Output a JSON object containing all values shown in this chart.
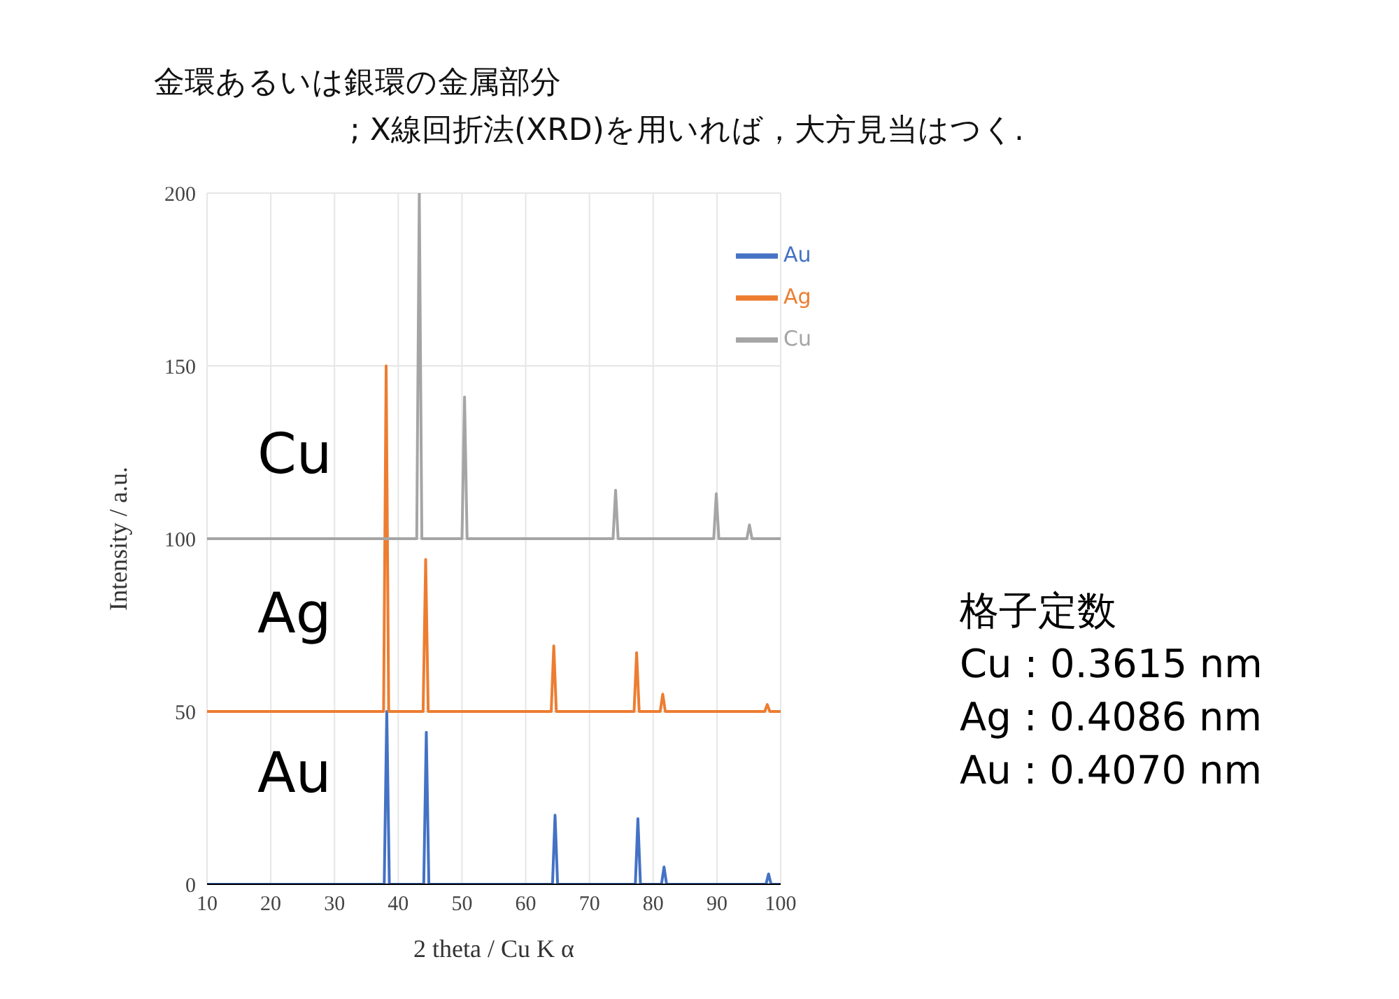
{
  "chart_data": {
    "type": "line",
    "title": "金環あるいは銀環の金属部分",
    "subtitle": "; X線回折法(XRD)を用いれば，大方見当はつく.",
    "xlabel": "2 theta /  Cu K α",
    "ylabel": "Intensity / a.u.",
    "xlim": [
      10,
      100
    ],
    "xticks": [
      10,
      20,
      30,
      40,
      50,
      60,
      70,
      80,
      90,
      100
    ],
    "ylim": [
      0,
      200
    ],
    "yticks": [
      0,
      50,
      100,
      150,
      200
    ],
    "grid": true,
    "legend": "top right",
    "marker": "none",
    "line_style": "solid",
    "series": [
      {
        "name": "Au",
        "color": "#4472c4",
        "x": [
          10,
          37.8,
          38.2,
          38.6,
          44.0,
          44.4,
          44.8,
          64.2,
          64.6,
          65.0,
          77.2,
          77.6,
          78.0,
          81.3,
          81.7,
          82.1,
          97.7,
          98.1,
          98.5,
          100
        ],
        "values": [
          0,
          0,
          50,
          0,
          0,
          44,
          0,
          0,
          20,
          0,
          0,
          19,
          0,
          0,
          5,
          0,
          0,
          3,
          0,
          0
        ]
      },
      {
        "name": "Ag",
        "color": "#ed7d31",
        "x": [
          10,
          37.7,
          38.1,
          38.5,
          43.9,
          44.3,
          44.7,
          64.0,
          64.4,
          64.8,
          77.0,
          77.4,
          77.8,
          81.1,
          81.5,
          81.9,
          97.5,
          97.9,
          98.3,
          100
        ],
        "values": [
          50,
          50,
          150,
          50,
          50,
          94,
          50,
          50,
          69,
          50,
          50,
          67,
          50,
          50,
          55,
          50,
          50,
          52,
          50,
          50
        ]
      },
      {
        "name": "Cu",
        "color": "#a5a5a5",
        "x": [
          10,
          42.9,
          43.3,
          43.7,
          50.0,
          50.4,
          50.8,
          73.7,
          74.1,
          74.5,
          89.5,
          89.9,
          90.3,
          94.7,
          95.1,
          95.5,
          100
        ],
        "values": [
          100,
          100,
          200,
          100,
          100,
          141,
          100,
          100,
          114,
          100,
          100,
          113,
          100,
          100,
          104,
          100,
          100
        ]
      }
    ],
    "annotations": [
      "Cu",
      "Ag",
      "Au",
      "格子定数",
      "Cu : 0.3615 nm",
      "Ag : 0.4086 nm",
      "Au : 0.4070 nm"
    ]
  }
}
